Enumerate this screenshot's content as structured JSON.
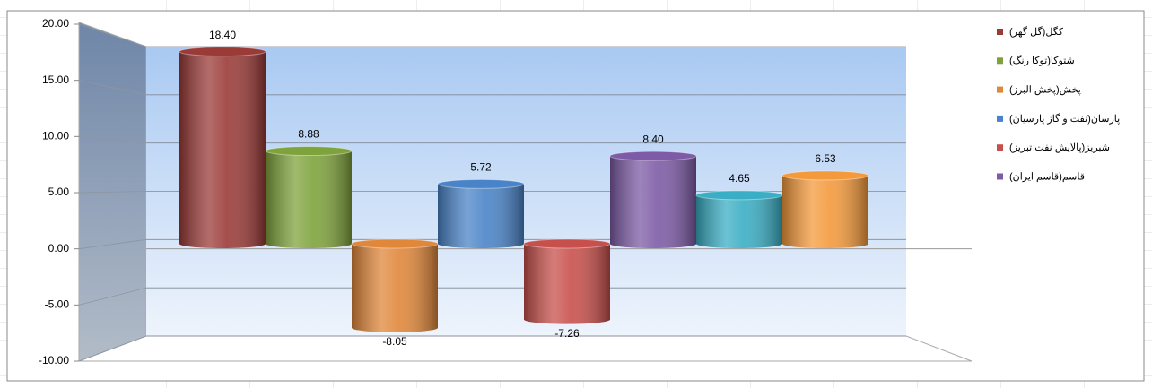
{
  "chart_data": {
    "type": "bar",
    "categories": [
      "کگل(گل گهر)",
      "شتوکا(توکا رنگ)",
      "پخش(پخش البرز)",
      "پارسان(نفت و گاز پارسیان)",
      "شبریز(پالایش نفت تبریز)",
      "قاسم(قاسم ایران)",
      null,
      null
    ],
    "values": [
      18.4,
      8.88,
      -8.05,
      5.72,
      -7.26,
      8.4,
      4.65,
      6.53
    ],
    "value_labels": [
      "18.40",
      "8.88",
      "-8.05",
      "5.72",
      "-7.26",
      "8.40",
      "4.65",
      "6.53"
    ],
    "colors": [
      "#9b3b38",
      "#7fa33c",
      "#e0873a",
      "#4a84c8",
      "#c8504c",
      "#7d5ba6",
      "#3aaec4",
      "#f49a3c"
    ],
    "ylim": [
      -10,
      20
    ],
    "yticks": [
      {
        "value": -10,
        "label": "-10.00"
      },
      {
        "value": -5,
        "label": "-5.00"
      },
      {
        "value": 0,
        "label": "0.00"
      },
      {
        "value": 5,
        "label": "5.00"
      },
      {
        "value": 10,
        "label": "10.00"
      },
      {
        "value": 15,
        "label": "15.00"
      },
      {
        "value": 20,
        "label": "20.00"
      }
    ],
    "grid": true,
    "legend": "right"
  }
}
